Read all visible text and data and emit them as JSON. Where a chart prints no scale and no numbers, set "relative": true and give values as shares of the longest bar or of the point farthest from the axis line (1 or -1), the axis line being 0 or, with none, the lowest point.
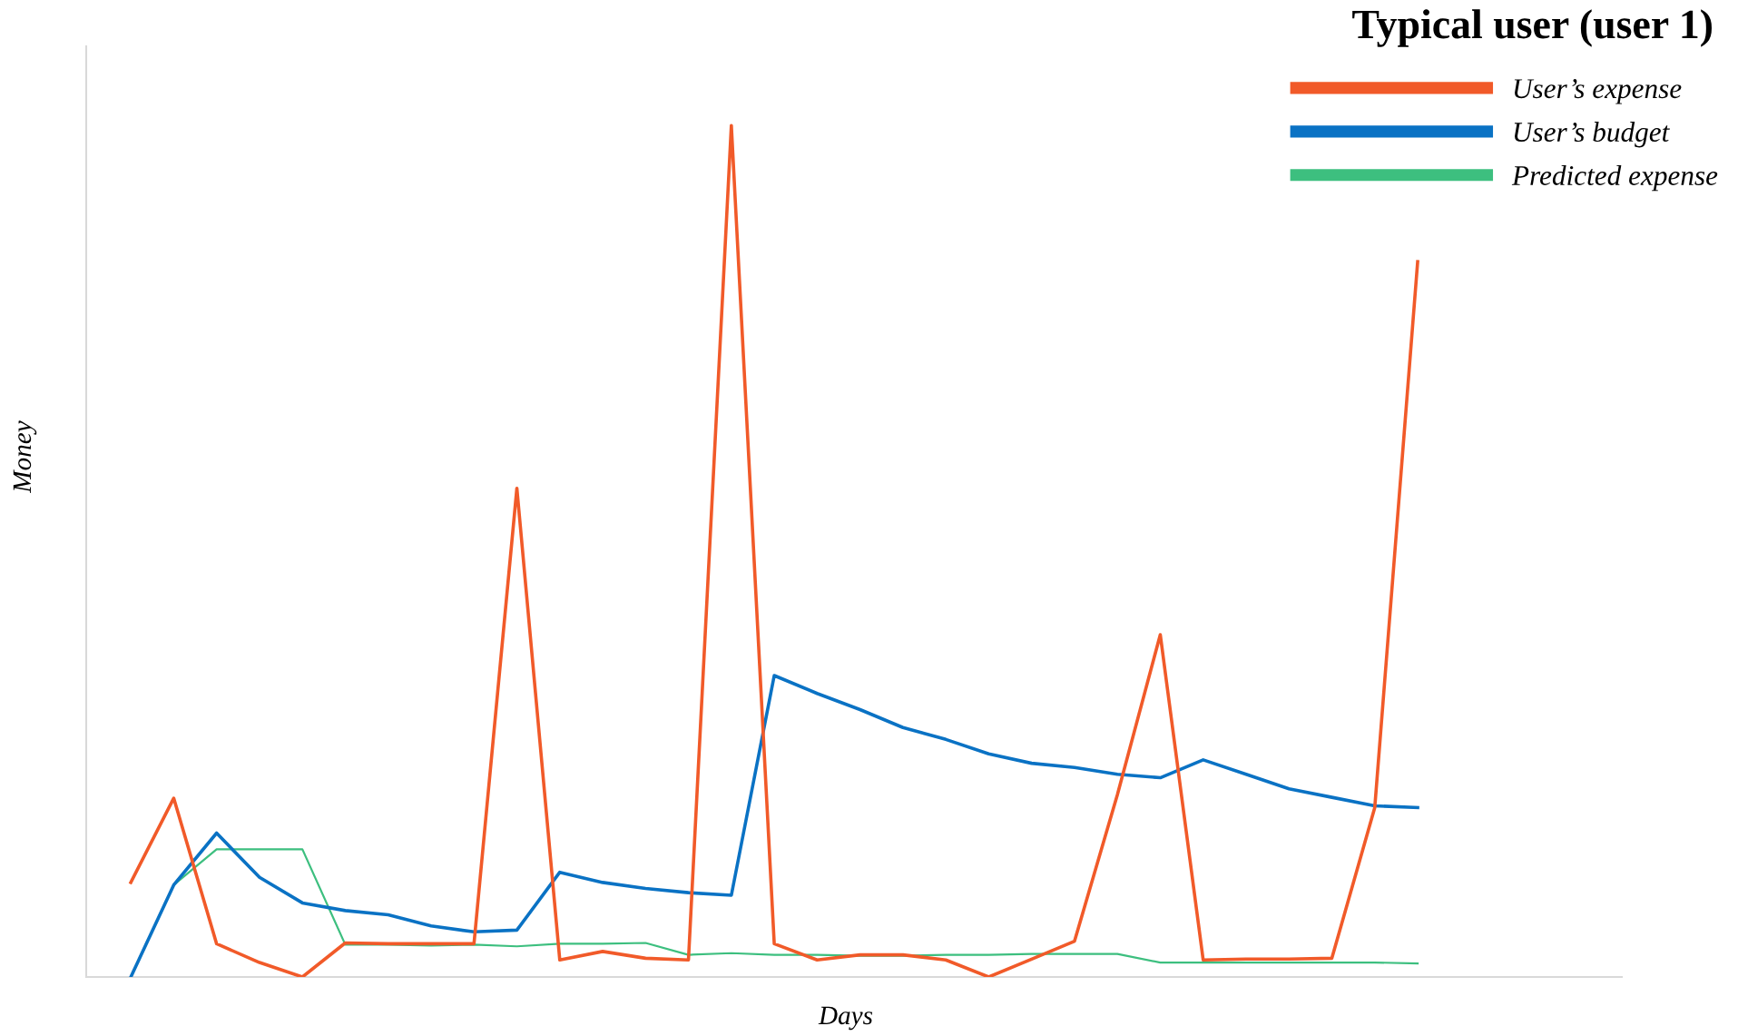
{
  "chart_data": {
    "type": "line",
    "title": "Typical user (user 1)",
    "xlabel": "Days",
    "ylabel": "Money",
    "relative": true,
    "legend": "top right",
    "categories": [
      null,
      null,
      null,
      null,
      null,
      null,
      null,
      null,
      null,
      null,
      null,
      null,
      null,
      null,
      null,
      null,
      null,
      null,
      null,
      null,
      null,
      null,
      null,
      null,
      null,
      null,
      null,
      null,
      null,
      null,
      null
    ],
    "series": [
      {
        "name": "User’s expense",
        "color": "#f15a29",
        "values": [
          0.111,
          0.21,
          0.039,
          0.017,
          0,
          0.04,
          0.039,
          0.039,
          0.039,
          0.574,
          0.02,
          0.03,
          0.022,
          0.02,
          1,
          0.039,
          0.02,
          0.026,
          0.026,
          0.02,
          0,
          0.021,
          0.042,
          0.214,
          0.402,
          0.02,
          0.021,
          0.021,
          0.022,
          0.199,
          0.84
        ]
      },
      {
        "name": "User’s budget",
        "color": "#0a72c4",
        "values": [
          0,
          0.108,
          0.169,
          0.117,
          0.087,
          0.078,
          0.073,
          0.06,
          0.053,
          0.055,
          0.123,
          0.111,
          0.104,
          0.099,
          0.096,
          0.354,
          0.333,
          0.314,
          0.293,
          0.279,
          0.262,
          0.251,
          0.246,
          0.238,
          0.234,
          0.255,
          0.238,
          0.221,
          0.211,
          0.201,
          0.199
        ]
      },
      {
        "name": "Predicted expense",
        "color": "#3dbf7f",
        "values": [
          0,
          0.108,
          0.15,
          0.15,
          0.15,
          0.038,
          0.038,
          0.037,
          0.038,
          0.036,
          0.039,
          0.039,
          0.04,
          0.026,
          0.028,
          0.026,
          0.026,
          0.025,
          0.025,
          0.026,
          0.026,
          0.027,
          0.027,
          0.027,
          0.017,
          0.017,
          0.017,
          0.017,
          0.017,
          0.017,
          0.016
        ]
      }
    ]
  }
}
